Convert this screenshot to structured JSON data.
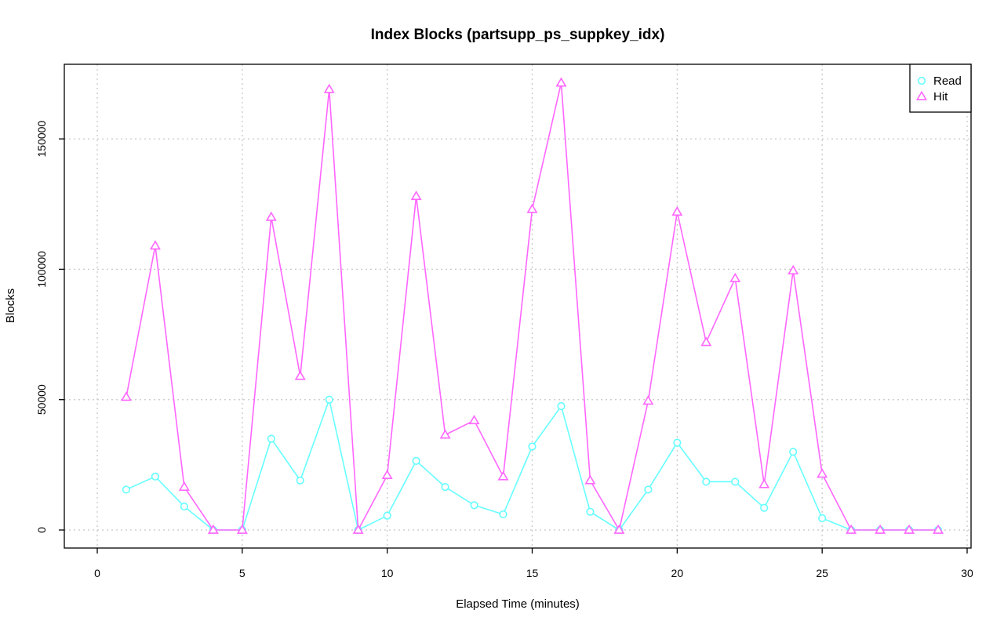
{
  "chart_data": {
    "type": "line",
    "title": "Index Blocks (partsupp_ps_suppkey_idx)",
    "xlabel": "Elapsed Time (minutes)",
    "ylabel": "Blocks",
    "xlim": [
      0,
      30
    ],
    "ylim": [
      0,
      175000
    ],
    "xticks": [
      0,
      5,
      10,
      15,
      20,
      25,
      30
    ],
    "yticks": [
      0,
      50000,
      100000,
      150000
    ],
    "grid": true,
    "legend_position": "top-right",
    "x": [
      1,
      2,
      3,
      4,
      5,
      6,
      7,
      8,
      9,
      10,
      11,
      12,
      13,
      14,
      15,
      16,
      17,
      18,
      19,
      20,
      21,
      22,
      23,
      24,
      25,
      26,
      27,
      28,
      29
    ],
    "series": [
      {
        "name": "Read",
        "color": "#66ffff",
        "marker": "circle",
        "values": [
          15500,
          20500,
          9000,
          0,
          0,
          35000,
          19000,
          50000,
          0,
          5500,
          26500,
          16500,
          9500,
          6000,
          32000,
          47500,
          7000,
          0,
          15500,
          33500,
          18500,
          18500,
          8500,
          30000,
          4500,
          0,
          0,
          0,
          0
        ]
      },
      {
        "name": "Hit",
        "color": "#ff66ff",
        "marker": "triangle",
        "values": [
          51000,
          109000,
          16500,
          0,
          0,
          120000,
          59000,
          169000,
          0,
          21000,
          128000,
          36500,
          42000,
          20500,
          123000,
          171500,
          19000,
          0,
          49500,
          122000,
          72000,
          96500,
          17500,
          99500,
          21500,
          0,
          0,
          0,
          0
        ]
      }
    ]
  }
}
